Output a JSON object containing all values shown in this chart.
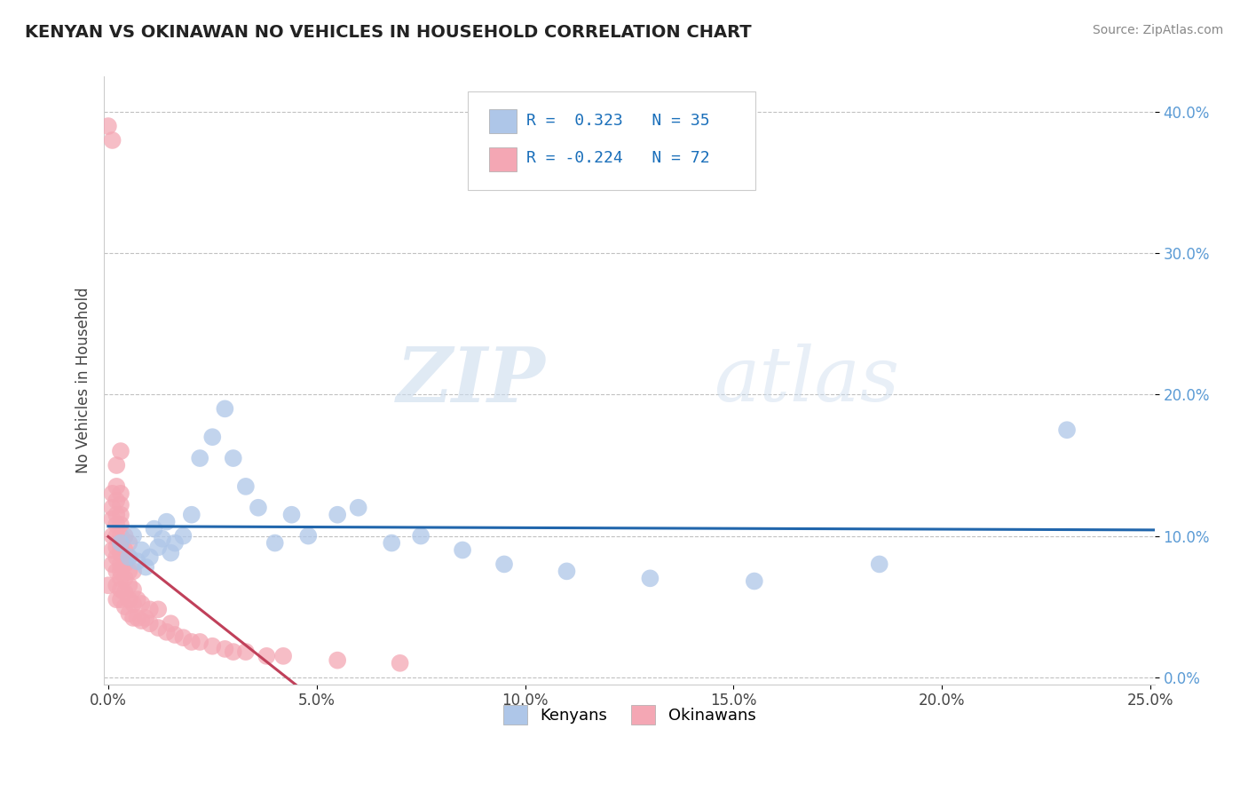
{
  "title": "KENYAN VS OKINAWAN NO VEHICLES IN HOUSEHOLD CORRELATION CHART",
  "source": "Source: ZipAtlas.com",
  "ylabel": "No Vehicles in Household",
  "xlim": [
    -0.001,
    0.251
  ],
  "ylim": [
    -0.005,
    0.425
  ],
  "xticks": [
    0.0,
    0.05,
    0.1,
    0.15,
    0.2,
    0.25
  ],
  "yticks": [
    0.0,
    0.1,
    0.2,
    0.3,
    0.4
  ],
  "xtick_labels": [
    "0.0%",
    "5.0%",
    "10.0%",
    "15.0%",
    "20.0%",
    "25.0%"
  ],
  "ytick_labels": [
    "0.0%",
    "10.0%",
    "20.0%",
    "30.0%",
    "40.0%"
  ],
  "kenyan_color": "#aec6e8",
  "okinawan_color": "#f4a7b4",
  "kenyan_line_color": "#2166ac",
  "okinawan_line_color": "#c0405a",
  "kenyan_R": 0.323,
  "kenyan_N": 35,
  "okinawan_R": -0.224,
  "okinawan_N": 72,
  "legend_labels": [
    "Kenyans",
    "Okinawans"
  ],
  "watermark_zip": "ZIP",
  "watermark_atlas": "atlas",
  "background_color": "#ffffff",
  "kenyan_x": [
    0.003,
    0.005,
    0.006,
    0.007,
    0.008,
    0.009,
    0.01,
    0.011,
    0.012,
    0.013,
    0.014,
    0.015,
    0.016,
    0.018,
    0.02,
    0.022,
    0.025,
    0.028,
    0.03,
    0.033,
    0.036,
    0.04,
    0.044,
    0.048,
    0.055,
    0.06,
    0.068,
    0.075,
    0.085,
    0.095,
    0.11,
    0.13,
    0.155,
    0.185,
    0.23
  ],
  "kenyan_y": [
    0.095,
    0.085,
    0.1,
    0.082,
    0.09,
    0.078,
    0.085,
    0.105,
    0.092,
    0.098,
    0.11,
    0.088,
    0.095,
    0.1,
    0.115,
    0.155,
    0.17,
    0.19,
    0.155,
    0.135,
    0.12,
    0.095,
    0.115,
    0.1,
    0.115,
    0.12,
    0.095,
    0.1,
    0.09,
    0.08,
    0.075,
    0.07,
    0.068,
    0.08,
    0.175
  ],
  "okinawan_x": [
    0.0,
    0.0,
    0.001,
    0.001,
    0.001,
    0.001,
    0.001,
    0.001,
    0.001,
    0.002,
    0.002,
    0.002,
    0.002,
    0.002,
    0.002,
    0.002,
    0.002,
    0.002,
    0.002,
    0.002,
    0.003,
    0.003,
    0.003,
    0.003,
    0.003,
    0.003,
    0.003,
    0.003,
    0.003,
    0.003,
    0.003,
    0.003,
    0.003,
    0.004,
    0.004,
    0.004,
    0.004,
    0.004,
    0.004,
    0.005,
    0.005,
    0.005,
    0.005,
    0.005,
    0.005,
    0.006,
    0.006,
    0.006,
    0.006,
    0.007,
    0.007,
    0.008,
    0.008,
    0.009,
    0.01,
    0.01,
    0.012,
    0.012,
    0.014,
    0.015,
    0.016,
    0.018,
    0.02,
    0.022,
    0.025,
    0.028,
    0.03,
    0.033,
    0.038,
    0.042,
    0.055,
    0.07
  ],
  "okinawan_y": [
    0.065,
    0.39,
    0.08,
    0.09,
    0.1,
    0.112,
    0.12,
    0.13,
    0.38,
    0.055,
    0.065,
    0.075,
    0.085,
    0.092,
    0.1,
    0.108,
    0.115,
    0.125,
    0.135,
    0.15,
    0.055,
    0.062,
    0.07,
    0.075,
    0.08,
    0.088,
    0.092,
    0.1,
    0.108,
    0.115,
    0.122,
    0.13,
    0.16,
    0.05,
    0.06,
    0.07,
    0.08,
    0.09,
    0.1,
    0.045,
    0.055,
    0.065,
    0.075,
    0.085,
    0.095,
    0.042,
    0.052,
    0.062,
    0.075,
    0.042,
    0.055,
    0.04,
    0.052,
    0.042,
    0.038,
    0.048,
    0.035,
    0.048,
    0.032,
    0.038,
    0.03,
    0.028,
    0.025,
    0.025,
    0.022,
    0.02,
    0.018,
    0.018,
    0.015,
    0.015,
    0.012,
    0.01
  ]
}
